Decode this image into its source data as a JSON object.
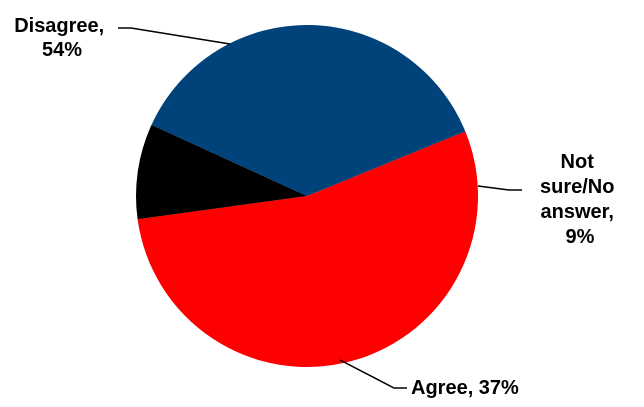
{
  "chart_data": {
    "type": "pie",
    "slices": [
      {
        "label": "Disagree",
        "value": 54,
        "color": "#ff0000",
        "text_lines": [
          "Disagree,",
          "54%"
        ]
      },
      {
        "label": "Not sure/No answer",
        "value": 9,
        "color": "#000000",
        "text_lines": [
          "Not",
          "sure/No",
          "answer,",
          "9%"
        ]
      },
      {
        "label": "Agree",
        "value": 37,
        "color": "#00427a",
        "text_lines": [
          "Agree, 37%"
        ]
      }
    ],
    "legend": "none",
    "data_labels": "outside with leader lines"
  }
}
